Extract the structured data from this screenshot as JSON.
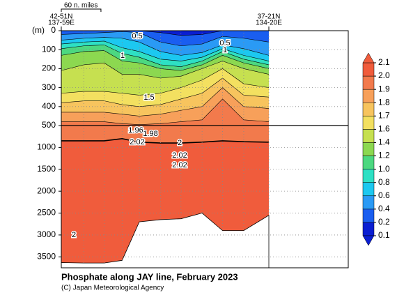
{
  "chart_data": {
    "type": "contour",
    "title": "Phosphate along JAY line, February 2023",
    "credit": "(C) Japan Meteorological Agency",
    "y_label": "(m)",
    "scale_label": "60 n. miles",
    "scale_length": 60,
    "stations": [
      {
        "lat": "42-51N",
        "lon": "137-59E",
        "x": 0
      },
      {
        "lat": "37-21N",
        "lon": "134-20E",
        "x": 314
      }
    ],
    "xlim": [
      0,
      314
    ],
    "x": [
      0,
      34,
      65,
      92,
      118,
      150,
      181,
      213,
      244,
      276,
      314
    ],
    "panels": [
      {
        "ylim": [
          0,
          500
        ],
        "yticks": [
          0,
          100,
          200,
          300,
          400,
          500
        ]
      },
      {
        "ylim": [
          500,
          3750
        ],
        "yticks": [
          1000,
          1500,
          2000,
          2500,
          3000,
          3500
        ]
      }
    ],
    "levels": [
      {
        "value": 0.2,
        "depths": [
          0,
          0,
          0,
          0,
          0,
          10,
          25,
          20,
          0,
          0,
          0
        ]
      },
      {
        "value": 0.4,
        "depths": [
          20,
          15,
          10,
          5,
          10,
          60,
          80,
          70,
          30,
          40,
          60
        ]
      },
      {
        "value": 0.6,
        "depths": [
          50,
          40,
          35,
          40,
          60,
          110,
          130,
          115,
          75,
          95,
          130
        ]
      },
      {
        "value": 0.8,
        "depths": [
          70,
          60,
          55,
          90,
          110,
          150,
          160,
          140,
          95,
          130,
          160
        ]
      },
      {
        "value": 1,
        "depths": [
          95,
          80,
          75,
          120,
          140,
          180,
          190,
          160,
          110,
          150,
          180
        ]
      },
      {
        "value": 1.2,
        "depths": [
          130,
          110,
          105,
          160,
          170,
          200,
          210,
          180,
          130,
          170,
          200
        ]
      },
      {
        "value": 1.4,
        "depths": [
          210,
          180,
          170,
          230,
          230,
          250,
          240,
          200,
          160,
          200,
          230
        ]
      },
      {
        "value": 1.6,
        "depths": [
          330,
          320,
          320,
          330,
          340,
          330,
          300,
          260,
          200,
          280,
          300
        ]
      },
      {
        "value": 1.7,
        "depths": [
          380,
          370,
          370,
          390,
          400,
          390,
          360,
          330,
          250,
          340,
          350
        ]
      },
      {
        "value": 1.8,
        "depths": [
          430,
          430,
          430,
          440,
          450,
          440,
          420,
          400,
          300,
          400,
          410
        ]
      },
      {
        "value": 1.9,
        "depths": [
          480,
          480,
          480,
          490,
          495,
          490,
          480,
          470,
          360,
          470,
          480
        ]
      },
      {
        "value": 2,
        "depths": [
          850,
          850,
          850,
          800,
          880,
          900,
          900,
          880,
          850,
          870,
          880
        ]
      }
    ],
    "bottom": [
      3630,
      3640,
      3640,
      3580,
      2700,
      2650,
      2630,
      2500,
      2900,
      2900,
      2550
    ],
    "colorbar": {
      "ticks": [
        0.1,
        0.2,
        0.4,
        0.6,
        0.8,
        {
          "value": 1,
          "label": "1.0"
        },
        1.2,
        1.4,
        1.6,
        1.7,
        1.8,
        1.9,
        {
          "value": 2,
          "label": "2.0"
        },
        2.1
      ],
      "colors": [
        "#0a1ed2",
        "#1a5ef0",
        "#2a9af5",
        "#1cc8f0",
        "#2ee0c4",
        "#4cd880",
        "#8cd850",
        "#c6e050",
        "#f3e060",
        "#f7c45e",
        "#f7a05a",
        "#f27a4c",
        "#f05c3c"
      ]
    },
    "contour_labels": [
      0.5,
      0.5,
      1,
      1,
      1.5,
      1.96,
      1.98,
      2,
      2.02,
      2.02,
      2.02,
      2
    ]
  }
}
